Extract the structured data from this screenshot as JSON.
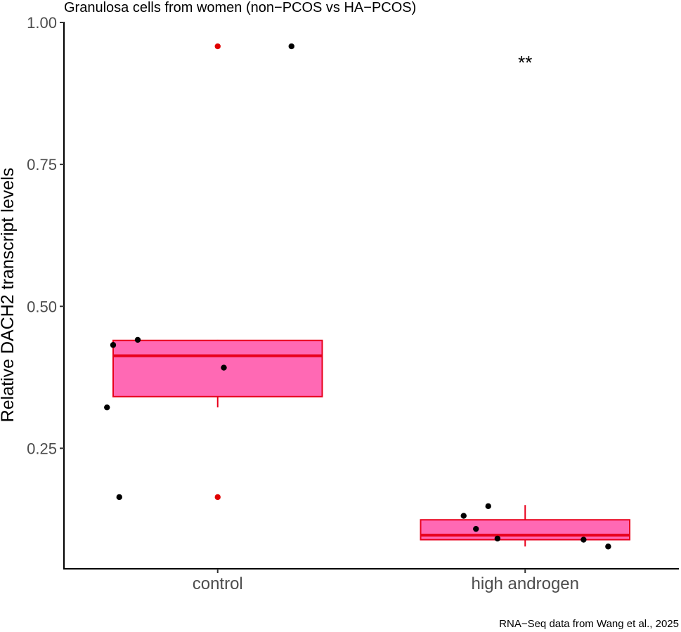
{
  "chart_data": {
    "type": "box",
    "title": "Granulosa cells from women (non−PCOS vs HA−PCOS)",
    "ylabel": "Relative DACH2 transcript levels",
    "xlabel": "",
    "caption": "RNA−Seq data from Wang et al., 2025",
    "ylim": [
      0.04,
      1.0
    ],
    "yticks": [
      0.25,
      0.5,
      0.75,
      1.0
    ],
    "ytick_labels": [
      "0.25",
      "0.50",
      "0.75",
      "1.00"
    ],
    "grid": false,
    "legend": "none",
    "categories": [
      "control",
      "high androgen"
    ],
    "colors": {
      "box_fill": "#ff69b4",
      "box_line": "#e8001c",
      "outlier": "#e00000",
      "point": "#000000"
    },
    "boxes": [
      {
        "category": "control",
        "q1": 0.341,
        "median": 0.413,
        "q3": 0.44,
        "whisker_low": 0.322,
        "whisker_high": 0.441,
        "outliers": [
          0.958,
          0.164
        ]
      },
      {
        "category": "high androgen",
        "q1": 0.089,
        "median": 0.097,
        "q3": 0.124,
        "whisker_low": 0.077,
        "whisker_high": 0.15,
        "outliers": []
      }
    ],
    "points": [
      {
        "category": "control",
        "y": 0.432,
        "jitter": -0.34
      },
      {
        "category": "control",
        "y": 0.441,
        "jitter": -0.26
      },
      {
        "category": "control",
        "y": 0.392,
        "jitter": 0.02
      },
      {
        "category": "control",
        "y": 0.322,
        "jitter": -0.36
      },
      {
        "category": "control",
        "y": 0.164,
        "jitter": -0.32
      },
      {
        "category": "control",
        "y": 0.958,
        "jitter": 0.24
      },
      {
        "category": "high androgen",
        "y": 0.131,
        "jitter": -0.2
      },
      {
        "category": "high androgen",
        "y": 0.148,
        "jitter": -0.12
      },
      {
        "category": "high androgen",
        "y": 0.108,
        "jitter": -0.16
      },
      {
        "category": "high androgen",
        "y": 0.091,
        "jitter": -0.09
      },
      {
        "category": "high androgen",
        "y": 0.089,
        "jitter": 0.19
      },
      {
        "category": "high androgen",
        "y": 0.077,
        "jitter": 0.27
      }
    ],
    "annotations": [
      {
        "category": "high androgen",
        "y": 0.938,
        "text": "**"
      }
    ]
  }
}
